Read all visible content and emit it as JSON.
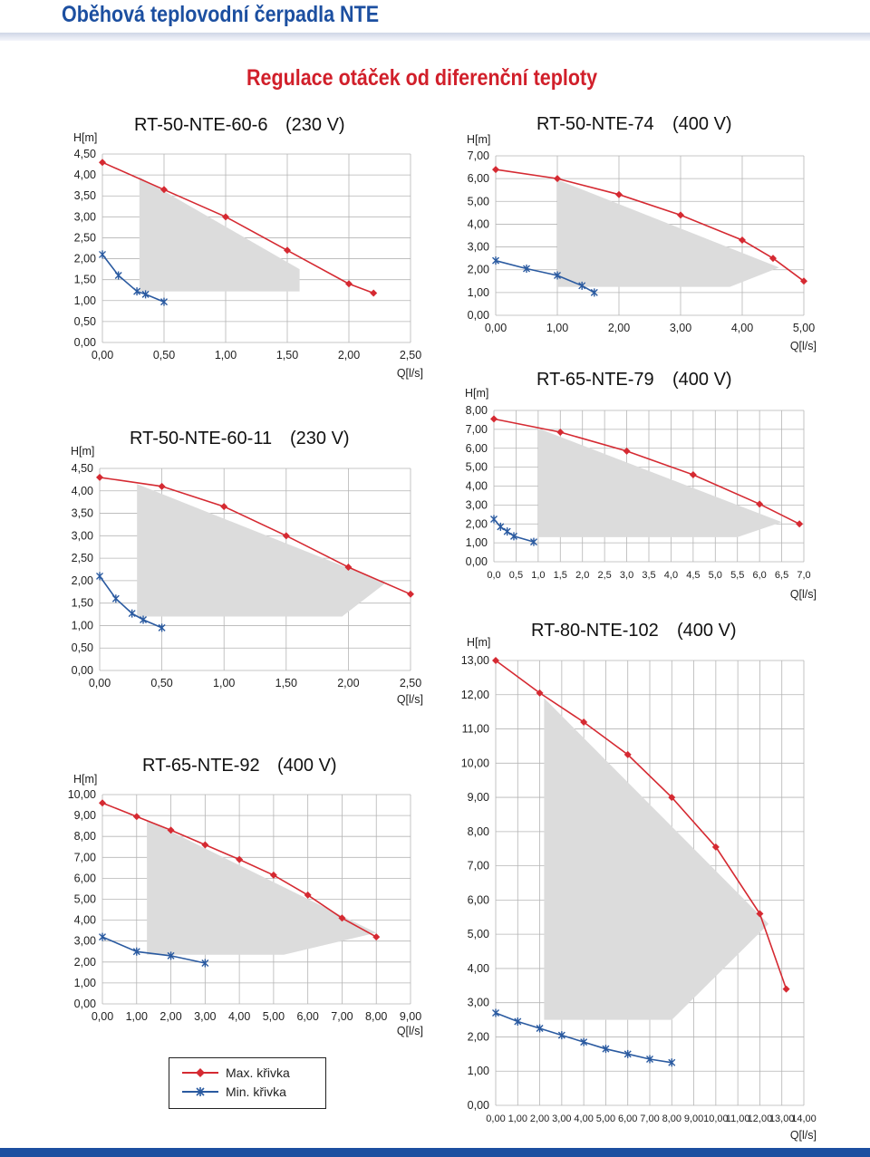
{
  "header": {
    "title": "Oběhová teplovodní čerpadla NTE"
  },
  "section": {
    "title": "Regulace otáček od diferenční teploty"
  },
  "legend": {
    "max_label": "Max. křivka",
    "min_label": "Min. křivka"
  },
  "colors": {
    "max": "#d52a32",
    "min": "#2a5aa0",
    "area": "#dcdcdc",
    "brand": "#1c4fa0"
  },
  "chart_data": [
    {
      "type": "line",
      "title": "RT-50-NTE-60-6",
      "voltage": "(230 V)",
      "ylabel": "H[m]",
      "xlabel": "Q[l/s]",
      "xticks": [
        "0,00",
        "0,50",
        "1,00",
        "1,50",
        "2,00",
        "2,50"
      ],
      "yticks": [
        "0,00",
        "0,50",
        "1,00",
        "1,50",
        "2,00",
        "2,50",
        "3,00",
        "3,50",
        "4,00",
        "4,50"
      ],
      "xlim": [
        0,
        2.5
      ],
      "ylim": [
        0,
        4.5
      ],
      "series": [
        {
          "name": "Max. křivka",
          "x": [
            0,
            0.5,
            1.0,
            1.5,
            2.0,
            2.2
          ],
          "y": [
            4.3,
            3.65,
            3.0,
            2.2,
            1.4,
            1.18
          ]
        },
        {
          "name": "Min. křivka",
          "x": [
            0,
            0.13,
            0.28,
            0.35,
            0.5
          ],
          "y": [
            2.1,
            1.6,
            1.22,
            1.15,
            0.97
          ]
        }
      ],
      "area": {
        "x": [
          0.3,
          0.3,
          1.6,
          1.6,
          0.3
        ],
        "y": [
          3.95,
          1.22,
          1.22,
          1.75,
          3.95
        ]
      }
    },
    {
      "type": "line",
      "title": "RT-50-NTE-60-11",
      "voltage": "(230 V)",
      "ylabel": "H[m]",
      "xlabel": "Q[l/s]",
      "xticks": [
        "0,00",
        "0,50",
        "1,00",
        "1,50",
        "2,00",
        "2,50"
      ],
      "yticks": [
        "0,00",
        "0,50",
        "1,00",
        "1,50",
        "2,00",
        "2,50",
        "3,00",
        "3,50",
        "4,00",
        "4,50"
      ],
      "xlim": [
        0,
        2.5
      ],
      "ylim": [
        0,
        4.5
      ],
      "series": [
        {
          "name": "Max. křivka",
          "x": [
            0,
            0.5,
            1.0,
            1.5,
            2.0,
            2.5
          ],
          "y": [
            4.3,
            4.1,
            3.65,
            3.0,
            2.3,
            1.7
          ]
        },
        {
          "name": "Min. křivka",
          "x": [
            0,
            0.13,
            0.26,
            0.35,
            0.5
          ],
          "y": [
            2.1,
            1.6,
            1.27,
            1.13,
            0.95
          ]
        }
      ],
      "area": {
        "x": [
          0.3,
          0.3,
          1.95,
          2.3,
          0.3
        ],
        "y": [
          4.15,
          1.2,
          1.2,
          1.95,
          4.15
        ]
      }
    },
    {
      "type": "line",
      "title": "RT-65-NTE-92",
      "voltage": "(400 V)",
      "ylabel": "H[m]",
      "xlabel": "Q[l/s]",
      "xticks": [
        "0,00",
        "1,00",
        "2,00",
        "3,00",
        "4,00",
        "5,00",
        "6,00",
        "7,00",
        "8,00",
        "9,00"
      ],
      "yticks": [
        "0,00",
        "1,00",
        "2,00",
        "3,00",
        "4,00",
        "5,00",
        "6,00",
        "7,00",
        "8,00",
        "9,00",
        "10,00"
      ],
      "xlim": [
        0,
        9
      ],
      "ylim": [
        0,
        10
      ],
      "series": [
        {
          "name": "Max. křivka",
          "x": [
            0,
            1,
            2,
            3,
            4,
            5,
            6,
            7,
            8
          ],
          "y": [
            9.6,
            8.95,
            8.3,
            7.6,
            6.9,
            6.15,
            5.2,
            4.1,
            3.2
          ]
        },
        {
          "name": "Min. křivka",
          "x": [
            0,
            1,
            2,
            3
          ],
          "y": [
            3.2,
            2.5,
            2.3,
            1.95
          ]
        }
      ],
      "area": {
        "x": [
          1.3,
          1.3,
          5.3,
          8.0,
          1.3
        ],
        "y": [
          8.8,
          2.35,
          2.35,
          3.4,
          8.8
        ]
      }
    },
    {
      "type": "line",
      "title": "RT-50-NTE-74",
      "voltage": "(400 V)",
      "ylabel": "H[m]",
      "xlabel": "Q[l/s]",
      "xticks": [
        "0,00",
        "1,00",
        "2,00",
        "3,00",
        "4,00",
        "5,00"
      ],
      "yticks": [
        "0,00",
        "1,00",
        "2,00",
        "3,00",
        "4,00",
        "5,00",
        "6,00",
        "7,00"
      ],
      "xlim": [
        0,
        5
      ],
      "ylim": [
        0,
        7
      ],
      "series": [
        {
          "name": "Max. křivka",
          "x": [
            0,
            1,
            2,
            3,
            4,
            4.5,
            5.0
          ],
          "y": [
            6.4,
            6.0,
            5.3,
            4.4,
            3.3,
            2.5,
            1.5
          ]
        },
        {
          "name": "Min. křivka",
          "x": [
            0,
            0.5,
            1.0,
            1.4,
            1.6
          ],
          "y": [
            2.4,
            2.05,
            1.75,
            1.3,
            1.0
          ]
        }
      ],
      "area": {
        "x": [
          1.0,
          1.0,
          3.8,
          4.6,
          1.0
        ],
        "y": [
          5.95,
          1.25,
          1.25,
          2.1,
          5.95
        ]
      }
    },
    {
      "type": "line",
      "title": "RT-65-NTE-79",
      "voltage": "(400 V)",
      "ylabel": "H[m]",
      "xlabel": "Q[l/s]",
      "xticks": [
        "0,0",
        "0,5",
        "1,0",
        "1,5",
        "2,0",
        "2,5",
        "3,0",
        "3,5",
        "4,0",
        "4,5",
        "5,0",
        "5,5",
        "6,0",
        "6,5",
        "7,0"
      ],
      "yticks": [
        "0,00",
        "1,00",
        "2,00",
        "3,00",
        "4,00",
        "5,00",
        "6,00",
        "7,00",
        "8,00"
      ],
      "xlim": [
        0,
        7
      ],
      "ylim": [
        0,
        8
      ],
      "series": [
        {
          "name": "Max. křivka",
          "x": [
            0,
            1.5,
            3.0,
            4.5,
            6.0,
            6.9
          ],
          "y": [
            7.55,
            6.85,
            5.85,
            4.6,
            3.05,
            2.0
          ]
        },
        {
          "name": "Min. křivka",
          "x": [
            0,
            0.15,
            0.3,
            0.45,
            0.9
          ],
          "y": [
            2.25,
            1.85,
            1.6,
            1.35,
            1.05
          ]
        }
      ],
      "area": {
        "x": [
          1.0,
          1.0,
          5.5,
          6.5,
          1.0
        ],
        "y": [
          7.05,
          1.3,
          1.3,
          2.1,
          7.05
        ]
      }
    },
    {
      "type": "line",
      "title": "RT-80-NTE-102",
      "voltage": "(400 V)",
      "ylabel": "H[m]",
      "xlabel": "Q[l/s]",
      "xticks": [
        "0,00",
        "1,00",
        "2,00",
        "3,00",
        "4,00",
        "5,00",
        "6,00",
        "7,00",
        "8,00",
        "9,00",
        "10,00",
        "11,00",
        "12,00",
        "13,00",
        "14,00"
      ],
      "yticks": [
        "0,00",
        "1,00",
        "2,00",
        "3,00",
        "4,00",
        "5,00",
        "6,00",
        "7,00",
        "8,00",
        "9,00",
        "10,00",
        "11,00",
        "12,00",
        "13,00"
      ],
      "xlim": [
        0,
        14
      ],
      "ylim": [
        0,
        13
      ],
      "series": [
        {
          "name": "Max. křivka",
          "x": [
            0,
            2,
            4,
            6,
            8,
            10,
            12,
            13.2
          ],
          "y": [
            13.0,
            12.05,
            11.2,
            10.25,
            9.0,
            7.55,
            5.6,
            3.4
          ]
        },
        {
          "name": "Min. křivka",
          "x": [
            0,
            1,
            2,
            3,
            4,
            5,
            6,
            7,
            8
          ],
          "y": [
            2.7,
            2.45,
            2.25,
            2.05,
            1.85,
            1.65,
            1.5,
            1.35,
            1.25
          ]
        }
      ],
      "area": {
        "x": [
          2.2,
          2.2,
          8.0,
          12.4,
          2.2
        ],
        "y": [
          11.9,
          2.5,
          2.5,
          5.3,
          11.9
        ]
      }
    }
  ]
}
